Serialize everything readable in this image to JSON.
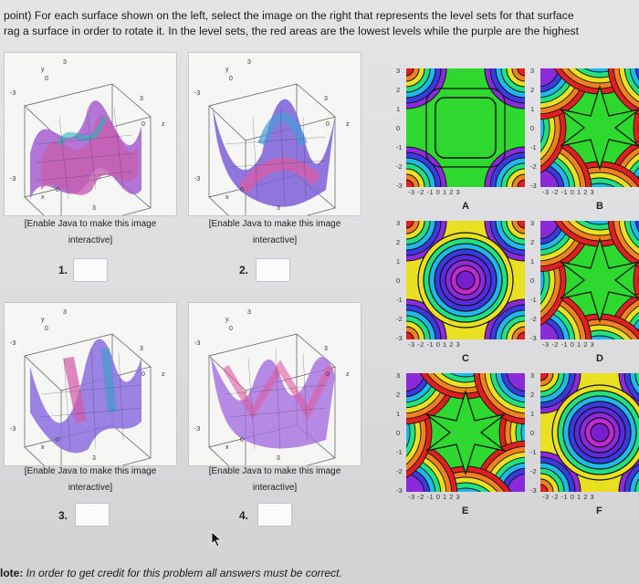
{
  "instructions": {
    "line1": "point) For each surface shown on the left, select the image on the right that represents the level sets for that surface",
    "line2": "rag a surface in order to rotate it. In the level sets, the red areas are the lowest levels while the purple are the highest"
  },
  "surfaces": [
    {
      "caption1": "[Enable Java to make this image",
      "caption2": "interactive]",
      "number": "1.",
      "answer": ""
    },
    {
      "caption1": "[Enable Java to make this image",
      "caption2": "interactive]",
      "number": "2.",
      "answer": ""
    },
    {
      "caption1": "[Enable Java to make this image",
      "caption2": "interactive]",
      "number": "3.",
      "answer": ""
    },
    {
      "caption1": "[Enable Java to make this image",
      "caption2": "interactive]",
      "number": "4.",
      "answer": ""
    }
  ],
  "surface_axis_labels": {
    "tick_pos": "3",
    "tick_zero": "0",
    "tick_neg": "-3",
    "axis_y": "y",
    "axis_x": "x",
    "axis_z": "z"
  },
  "level_plots": [
    {
      "label": "A",
      "style": "grid",
      "center": "#2fd82f"
    },
    {
      "label": "B",
      "style": "star",
      "center": "#2fd82f"
    },
    {
      "label": "C",
      "style": "rings",
      "center": "#7a1fd0"
    },
    {
      "label": "D",
      "style": "star",
      "center": "#2fd82f"
    },
    {
      "label": "E",
      "style": "star",
      "center": "#2fd82f"
    },
    {
      "label": "F",
      "style": "rings",
      "center": "#7a1fd0"
    }
  ],
  "plot_ticks": {
    "y": [
      "3",
      "2",
      "1",
      "0",
      "-1",
      "-2",
      "-3"
    ],
    "x": "-3  -2  -1   0   1   2   3"
  },
  "note": {
    "prefix": "lote:",
    "text": " In order to get credit for this problem all answers must be correct."
  }
}
